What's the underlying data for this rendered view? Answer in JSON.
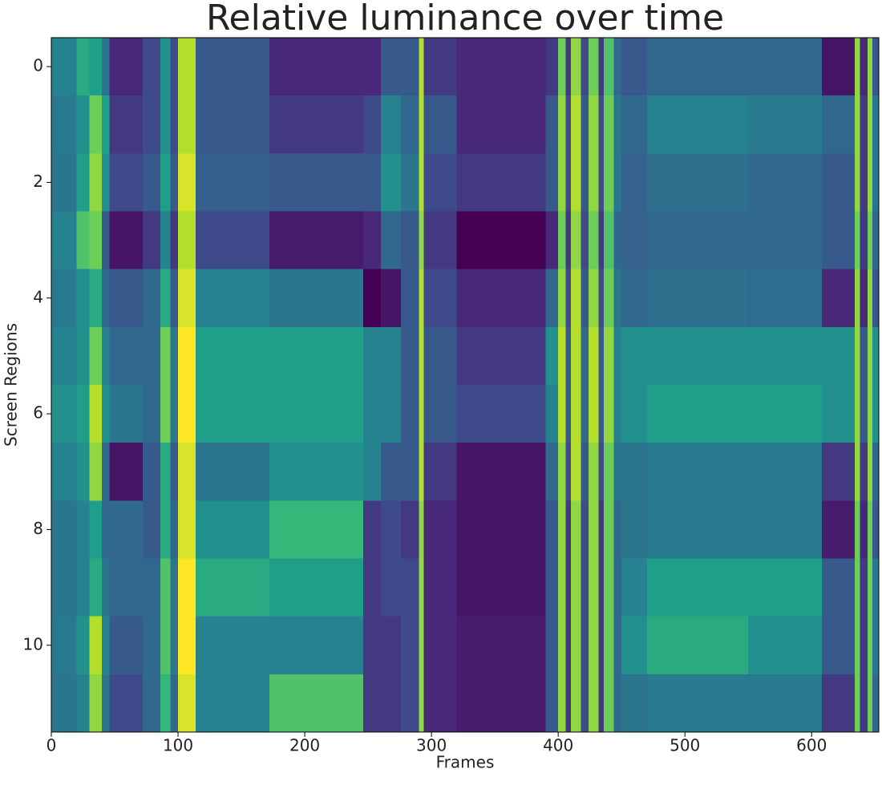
{
  "chart_data": {
    "type": "heatmap",
    "title": "Relative luminance over time",
    "x_label": "Frames",
    "y_label": "Screen Regions",
    "colormap": "viridis",
    "xlim": [
      0,
      653
    ],
    "ylim": [
      11.5,
      -0.5
    ],
    "xticks": [
      0,
      100,
      200,
      300,
      400,
      500,
      600
    ],
    "yticks": [
      0,
      2,
      4,
      6,
      8,
      10
    ],
    "x_edges": [
      0,
      20,
      30,
      40,
      46,
      72,
      86,
      94,
      100,
      114,
      172,
      246,
      260,
      276,
      290,
      294,
      320,
      390,
      400,
      406,
      410,
      418,
      424,
      432,
      436,
      444,
      450,
      470,
      550,
      608,
      634,
      638,
      644,
      648,
      653
    ],
    "values": [
      [
        0.45,
        0.42,
        0.4,
        0.45,
        0.42,
        0.45,
        0.5,
        0.45,
        0.4,
        0.4,
        0.42,
        0.4
      ],
      [
        0.6,
        0.5,
        0.55,
        0.7,
        0.5,
        0.5,
        0.55,
        0.5,
        0.45,
        0.45,
        0.5,
        0.45
      ],
      [
        0.55,
        0.75,
        0.8,
        0.75,
        0.6,
        0.75,
        0.85,
        0.8,
        0.55,
        0.6,
        0.85,
        0.8
      ],
      [
        0.4,
        0.55,
        0.5,
        0.3,
        0.35,
        0.45,
        0.5,
        0.35,
        0.35,
        0.4,
        0.45,
        0.4
      ],
      [
        0.15,
        0.2,
        0.25,
        0.1,
        0.3,
        0.35,
        0.4,
        0.1,
        0.35,
        0.35,
        0.3,
        0.25
      ],
      [
        0.25,
        0.25,
        0.3,
        0.2,
        0.35,
        0.35,
        0.35,
        0.3,
        0.3,
        0.35,
        0.35,
        0.35
      ],
      [
        0.5,
        0.5,
        0.55,
        0.45,
        0.6,
        0.75,
        0.75,
        0.6,
        0.6,
        0.7,
        0.7,
        0.65
      ],
      [
        0.25,
        0.25,
        0.3,
        0.2,
        0.3,
        0.4,
        0.4,
        0.3,
        0.35,
        0.4,
        0.4,
        0.35
      ],
      [
        0.85,
        0.85,
        0.9,
        0.85,
        0.9,
        0.95,
        0.95,
        0.9,
        0.9,
        0.95,
        0.95,
        0.9
      ],
      [
        0.3,
        0.3,
        0.32,
        0.25,
        0.45,
        0.55,
        0.55,
        0.4,
        0.5,
        0.6,
        0.45,
        0.45
      ],
      [
        0.15,
        0.2,
        0.3,
        0.12,
        0.4,
        0.55,
        0.55,
        0.5,
        0.65,
        0.55,
        0.45,
        0.7
      ],
      [
        0.15,
        0.25,
        0.3,
        0.15,
        0.05,
        0.45,
        0.45,
        0.45,
        0.2,
        0.2,
        0.2,
        0.2
      ],
      [
        0.3,
        0.45,
        0.5,
        0.35,
        0.1,
        0.45,
        0.45,
        0.3,
        0.25,
        0.25,
        0.2,
        0.2
      ],
      [
        0.3,
        0.35,
        0.4,
        0.3,
        0.3,
        0.3,
        0.3,
        0.3,
        0.2,
        0.25,
        0.25,
        0.25
      ],
      [
        0.85,
        0.85,
        0.85,
        0.8,
        0.85,
        0.85,
        0.85,
        0.85,
        0.8,
        0.8,
        0.8,
        0.8
      ],
      [
        0.2,
        0.3,
        0.25,
        0.2,
        0.25,
        0.3,
        0.3,
        0.2,
        0.15,
        0.15,
        0.15,
        0.15
      ],
      [
        0.15,
        0.15,
        0.2,
        0.05,
        0.15,
        0.2,
        0.25,
        0.1,
        0.1,
        0.1,
        0.12,
        0.12
      ],
      [
        0.2,
        0.3,
        0.3,
        0.15,
        0.35,
        0.5,
        0.45,
        0.35,
        0.3,
        0.3,
        0.3,
        0.3
      ],
      [
        0.75,
        0.8,
        0.8,
        0.75,
        0.8,
        0.85,
        0.85,
        0.8,
        0.8,
        0.8,
        0.8,
        0.8
      ],
      [
        0.2,
        0.25,
        0.25,
        0.2,
        0.25,
        0.3,
        0.3,
        0.25,
        0.2,
        0.2,
        0.2,
        0.2
      ],
      [
        0.8,
        0.85,
        0.85,
        0.8,
        0.85,
        0.85,
        0.85,
        0.85,
        0.8,
        0.8,
        0.8,
        0.8
      ],
      [
        0.25,
        0.3,
        0.3,
        0.25,
        0.3,
        0.35,
        0.35,
        0.3,
        0.25,
        0.25,
        0.25,
        0.25
      ],
      [
        0.75,
        0.8,
        0.8,
        0.75,
        0.8,
        0.85,
        0.85,
        0.8,
        0.8,
        0.8,
        0.8,
        0.8
      ],
      [
        0.2,
        0.25,
        0.25,
        0.2,
        0.25,
        0.3,
        0.3,
        0.25,
        0.2,
        0.2,
        0.2,
        0.2
      ],
      [
        0.7,
        0.75,
        0.75,
        0.7,
        0.75,
        0.8,
        0.8,
        0.75,
        0.75,
        0.75,
        0.75,
        0.75
      ],
      [
        0.35,
        0.4,
        0.4,
        0.35,
        0.4,
        0.45,
        0.45,
        0.4,
        0.35,
        0.35,
        0.35,
        0.35
      ],
      [
        0.3,
        0.35,
        0.33,
        0.33,
        0.35,
        0.5,
        0.5,
        0.4,
        0.4,
        0.45,
        0.5,
        0.4
      ],
      [
        0.35,
        0.45,
        0.38,
        0.35,
        0.38,
        0.5,
        0.55,
        0.42,
        0.42,
        0.55,
        0.6,
        0.42
      ],
      [
        0.35,
        0.42,
        0.35,
        0.35,
        0.37,
        0.5,
        0.55,
        0.42,
        0.42,
        0.55,
        0.5,
        0.42
      ],
      [
        0.1,
        0.35,
        0.3,
        0.3,
        0.15,
        0.5,
        0.5,
        0.2,
        0.12,
        0.3,
        0.3,
        0.2
      ],
      [
        0.8,
        0.8,
        0.8,
        0.75,
        0.8,
        0.8,
        0.8,
        0.8,
        0.75,
        0.75,
        0.75,
        0.75
      ],
      [
        0.15,
        0.2,
        0.2,
        0.2,
        0.15,
        0.3,
        0.3,
        0.2,
        0.15,
        0.2,
        0.2,
        0.2
      ],
      [
        0.8,
        0.8,
        0.8,
        0.75,
        0.8,
        0.8,
        0.8,
        0.8,
        0.75,
        0.75,
        0.75,
        0.75
      ],
      [
        0.3,
        0.4,
        0.4,
        0.35,
        0.3,
        0.5,
        0.5,
        0.35,
        0.3,
        0.4,
        0.4,
        0.35
      ]
    ]
  }
}
